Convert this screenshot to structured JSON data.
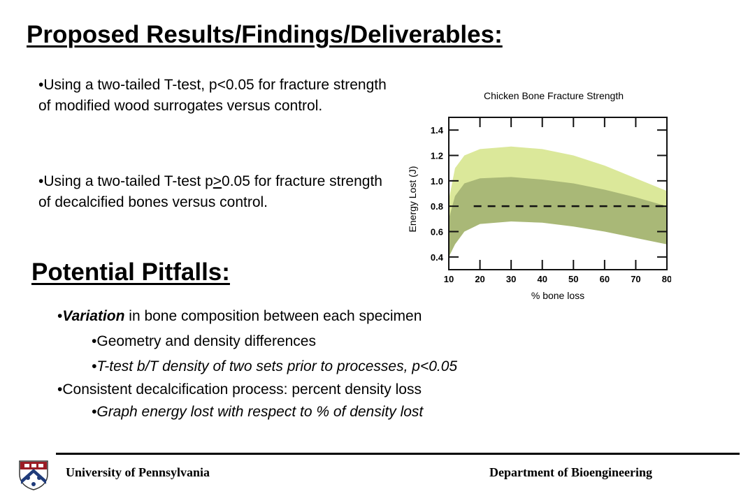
{
  "slide": {
    "title_findings": "Proposed Results/Findings/Deliverables:",
    "findings": [
      {
        "bullet": "•",
        "pre": "Using a two-tailed T-test, p<0.05 for fracture strength of modified wood surrogates versus control."
      },
      {
        "bullet": "•",
        "pre": "Using a two-tailed T-test p",
        "underlined": ">",
        "post": "0.05 for fracture strength of decalcified bones versus control."
      }
    ],
    "title_pitfalls": "Potential Pitfalls:",
    "pitfalls": {
      "p1": {
        "bullet": "•",
        "em": "Variation",
        "rest": " in bone composition between each specimen"
      },
      "p1a": {
        "bullet": "•",
        "text": "Geometry and density differences"
      },
      "p1b": {
        "bullet": "•",
        "text": "T-test b/T density of two sets prior to processes, p<0.05"
      },
      "p2": {
        "bullet": "•",
        "text": "Consistent decalcification process: percent density loss"
      },
      "p2a": {
        "bullet": "•",
        "text": "Graph energy lost with respect to % of density lost"
      }
    }
  },
  "chart_data": {
    "type": "area",
    "title": "Chicken Bone Fracture Strength",
    "xlabel": "% bone loss",
    "ylabel": "Energy Lost (J)",
    "xlim": [
      10,
      80
    ],
    "ylim": [
      0.3,
      1.5
    ],
    "x_ticks": [
      10,
      20,
      30,
      40,
      50,
      60,
      70,
      80
    ],
    "y_ticks": [
      0.4,
      0.6,
      0.8,
      1.0,
      1.2,
      1.4
    ],
    "y_tick_labels": [
      "0.4",
      "0.6",
      "0.8",
      "1.0",
      "1.2",
      "1.4"
    ],
    "series": [
      {
        "color": "#dbe89a",
        "x": [
          10,
          12,
          15,
          20,
          30,
          40,
          50,
          60,
          70,
          80
        ],
        "upper": [
          0.85,
          1.1,
          1.2,
          1.25,
          1.27,
          1.25,
          1.2,
          1.12,
          1.02,
          0.92
        ],
        "lower": [
          0.5,
          0.75,
          0.85,
          0.88,
          0.88,
          0.86,
          0.82,
          0.76,
          0.68,
          0.6
        ]
      },
      {
        "color": "#a9b877",
        "x": [
          10,
          12,
          15,
          20,
          30,
          40,
          50,
          60,
          70,
          80
        ],
        "upper": [
          0.7,
          0.88,
          0.98,
          1.02,
          1.03,
          1.01,
          0.98,
          0.93,
          0.87,
          0.8
        ],
        "lower": [
          0.4,
          0.5,
          0.6,
          0.66,
          0.68,
          0.67,
          0.64,
          0.6,
          0.55,
          0.5
        ]
      }
    ],
    "reference_line": {
      "y": 0.8,
      "x_from": 18,
      "x_to": 80,
      "style": "dashed"
    },
    "grid": false,
    "legend": "none"
  },
  "footer": {
    "left": "University of Pennsylvania",
    "right": "Department of Bioengineering"
  },
  "colors": {
    "band_light": "#dbe89a",
    "band_dark": "#a9b877",
    "logo_red": "#9b1c24",
    "logo_blue": "#1f3b7a"
  }
}
